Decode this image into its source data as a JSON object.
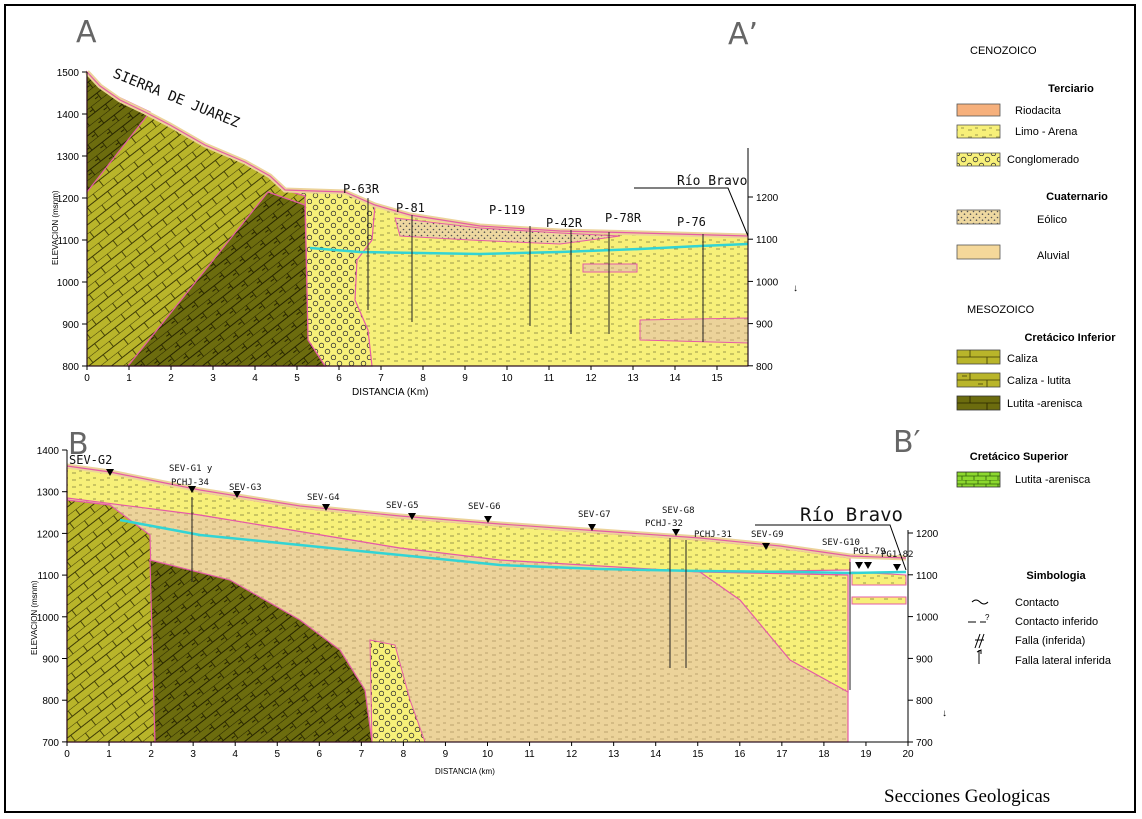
{
  "section_a": {
    "label_left": "A",
    "label_right": "A’",
    "range_name": "SIERRA DE JUAREZ",
    "river": "Río Bravo",
    "y_axis_label": "ELEVACION (msnm)",
    "x_axis_label": "DISTANCIA (Km)",
    "y_ticks_left": [
      "1500",
      "1400",
      "1300",
      "1200",
      "1100",
      "1000",
      "900",
      "800"
    ],
    "y_ticks_right": [
      "1200",
      "1100",
      "1000",
      "900",
      "800"
    ],
    "x_ticks": [
      "0",
      "1",
      "2",
      "3",
      "4",
      "5",
      "6",
      "7",
      "8",
      "9",
      "10",
      "11",
      "12",
      "13",
      "14",
      "15"
    ],
    "wells": [
      "P-63R",
      "P-81",
      "P-119",
      "P-42R",
      "P-78R",
      "P-76"
    ]
  },
  "section_b": {
    "label_left": "B",
    "label_right": "B′",
    "river": "Río Bravo",
    "y_axis_label": "ELEVACION (msnm)",
    "x_axis_label": "DISTANCIA (km)",
    "y_ticks_left": [
      "1400",
      "1300",
      "1200",
      "1100",
      "1000",
      "900",
      "800",
      "700"
    ],
    "y_ticks_right": [
      "1200",
      "1100",
      "1000",
      "900",
      "800",
      "700"
    ],
    "x_ticks": [
      "0",
      "1",
      "2",
      "3",
      "4",
      "5",
      "6",
      "7",
      "8",
      "9",
      "10",
      "11",
      "12",
      "13",
      "14",
      "15",
      "16",
      "17",
      "18",
      "19",
      "20"
    ],
    "wells": {
      "g2": "SEV-G2",
      "g1": "SEV-G1 y",
      "pchj34": "PCHJ-34",
      "g3": "SEV-G3",
      "g4": "SEV-G4",
      "g5": "SEV-G5",
      "g6": "SEV-G6",
      "g7": "SEV-G7",
      "g8": "SEV-G8",
      "pchj32": "PCHJ-32",
      "pchj31": "PCHJ-31",
      "g9": "SEV-G9",
      "g10": "SEV-G10",
      "pg79": "PG1-79",
      "pg82": "PG1-82"
    }
  },
  "legend": {
    "era_cenozoic": "CENOZOICO",
    "terciario": "Terciario",
    "riodacita": "Riodacita",
    "limo_arena": "Limo - Arena",
    "conglomerado": "Conglomerado",
    "cuaternario": "Cuaternario",
    "eolico": "Eólico",
    "aluvial": "Aluvial",
    "era_mesozoic": "MESOZOICO",
    "cretacico_inferior": "Cretácico Inferior",
    "caliza": "Caliza",
    "caliza_lutita": "Caliza - lutita",
    "lutita_arenisca": "Lutita -arenisca",
    "cretacico_superior": "Cretácico Superior",
    "lutita_arenisca_sup": "Lutita -arenisca",
    "simbologia": "Simbologia",
    "contacto": "Contacto",
    "contacto_inferido": "Contacto inferido",
    "falla": "Falla (inferida)",
    "falla_lateral": "Falla lateral inferida"
  },
  "footer": "Secciones Geologicas",
  "colors": {
    "yellow": "#f7f079",
    "caliza_green": "#b9b52a",
    "dark_green": "#6c6c0e",
    "tan": "#ecd39a",
    "riodacita": "#f6b07c",
    "bright_green": "#8cd82e",
    "contact": "#e55ba5",
    "water": "#33d4d4"
  }
}
